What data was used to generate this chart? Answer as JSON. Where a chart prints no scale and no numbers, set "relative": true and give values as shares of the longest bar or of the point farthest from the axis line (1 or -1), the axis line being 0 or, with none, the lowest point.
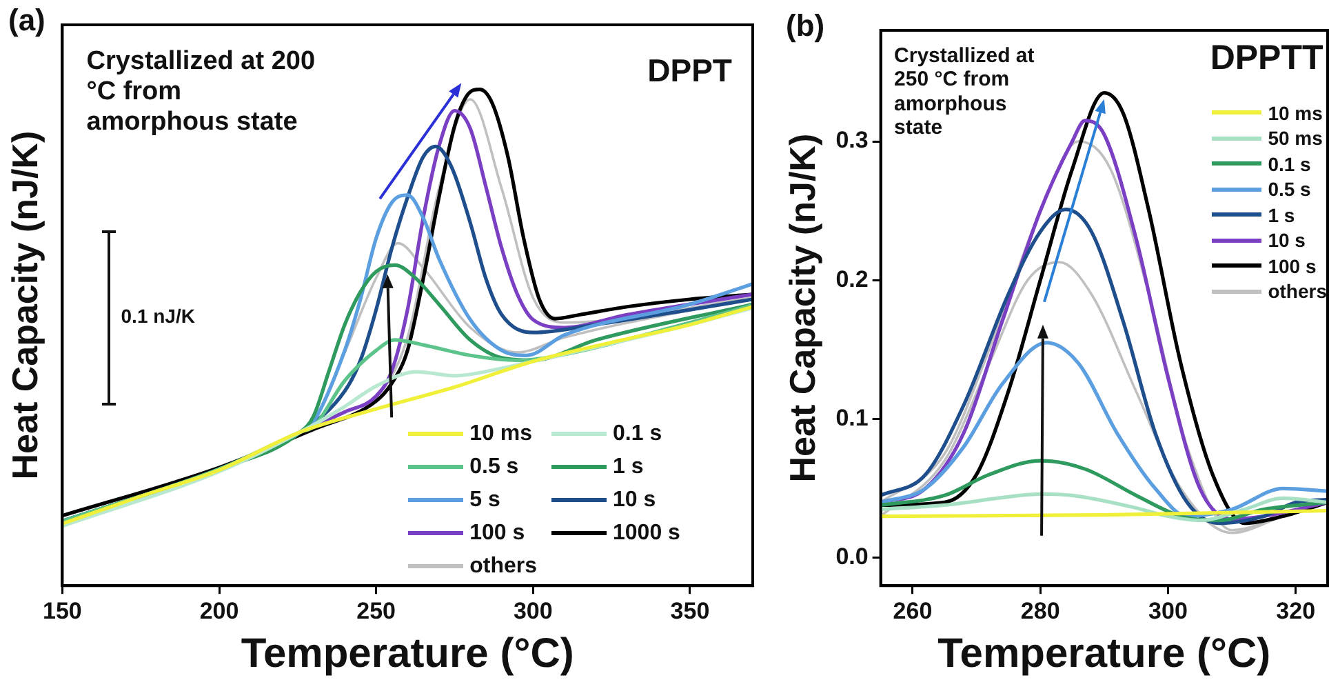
{
  "chart_data": [
    {
      "type": "line",
      "title": "(a)",
      "xlabel": "Temperature (°C)",
      "ylabel": "Heat Capacity (nJ/K)",
      "relative": true,
      "legend": "bottom right",
      "xlim": [
        150,
        370
      ],
      "xticks": [
        150,
        200,
        250,
        300,
        350
      ],
      "annotations": [
        "Crystallized at 200 °C from amorphous state",
        "DPPT",
        "0.1 nJ/K"
      ],
      "series": [
        {
          "name": "10 ms",
          "color": "#f0f03a",
          "x": [
            150,
            175,
            200,
            226,
            250,
            275,
            300,
            325,
            350,
            370
          ],
          "values": [
            0.125,
            0.18,
            0.233,
            0.31,
            0.356,
            0.4,
            0.452,
            0.49,
            0.526,
            0.562
          ]
        },
        {
          "name": "0.1 s",
          "color": "#b8e8d0",
          "x": [
            150,
            200,
            226,
            240,
            250,
            263,
            275,
            290,
            300,
            350,
            370
          ],
          "values": [
            0.12,
            0.23,
            0.31,
            0.361,
            0.402,
            0.431,
            0.423,
            0.438,
            0.452,
            0.526,
            0.56
          ]
        },
        {
          "name": "0.5 s",
          "color": "#5cc48a",
          "x": [
            150,
            200,
            226,
            230,
            240,
            250,
            256,
            265,
            280,
            295,
            305,
            350,
            370
          ],
          "values": [
            0.13,
            0.235,
            0.31,
            0.32,
            0.413,
            0.474,
            0.495,
            0.485,
            0.464,
            0.454,
            0.46,
            0.53,
            0.565
          ]
        },
        {
          "name": "1 s",
          "color": "#2e9a5e",
          "x": [
            150,
            200,
            226,
            230,
            235,
            240,
            245,
            250,
            256,
            262,
            270,
            280,
            290,
            300,
            320,
            370
          ],
          "values": [
            0.13,
            0.235,
            0.31,
            0.341,
            0.433,
            0.526,
            0.592,
            0.633,
            0.646,
            0.623,
            0.567,
            0.495,
            0.459,
            0.454,
            0.495,
            0.567
          ]
        },
        {
          "name": "5 s",
          "color": "#5b9fe0",
          "x": [
            226,
            230,
            240,
            245,
            250,
            255,
            260,
            265,
            270,
            280,
            290,
            298,
            310,
            350,
            370
          ],
          "values": [
            0.31,
            0.33,
            0.474,
            0.577,
            0.7,
            0.772,
            0.787,
            0.741,
            0.659,
            0.536,
            0.474,
            0.464,
            0.505,
            0.567,
            0.608
          ]
        },
        {
          "name": "10 s",
          "color": "#1f4e8c",
          "x": [
            150,
            200,
            226,
            240,
            245,
            250,
            255,
            260,
            265,
            269,
            274,
            280,
            285,
            290,
            300,
            320,
            350,
            370
          ],
          "values": [
            0.13,
            0.235,
            0.31,
            0.392,
            0.454,
            0.556,
            0.68,
            0.782,
            0.864,
            0.885,
            0.844,
            0.731,
            0.618,
            0.546,
            0.51,
            0.526,
            0.556,
            0.577
          ]
        },
        {
          "name": "100 s",
          "color": "#7b3fc4",
          "x": [
            150,
            200,
            226,
            240,
            250,
            255,
            260,
            265,
            270,
            275,
            280,
            285,
            290,
            295,
            300,
            310,
            330,
            350,
            370
          ],
          "values": [
            0.13,
            0.235,
            0.31,
            0.35,
            0.382,
            0.433,
            0.556,
            0.741,
            0.885,
            0.957,
            0.921,
            0.803,
            0.68,
            0.587,
            0.536,
            0.52,
            0.546,
            0.567,
            0.587
          ]
        },
        {
          "name": "1000 s",
          "color": "#000000",
          "x": [
            150,
            200,
            230,
            250,
            255,
            260,
            265,
            270,
            275,
            279,
            283,
            287,
            292,
            297,
            302,
            307,
            315,
            330,
            350,
            370
          ],
          "values": [
            0.141,
            0.238,
            0.315,
            0.372,
            0.408,
            0.474,
            0.618,
            0.782,
            0.926,
            0.988,
            1,
            0.972,
            0.864,
            0.7,
            0.577,
            0.538,
            0.546,
            0.562,
            0.577,
            0.587
          ]
        },
        {
          "name": "others",
          "color": "#c0c0c0",
          "x": [
            150,
            200,
            226,
            230,
            240,
            250,
            257,
            265,
            280,
            295,
            310,
            370
          ],
          "values": [
            0.13,
            0.235,
            0.31,
            0.33,
            0.47,
            0.62,
            0.69,
            0.64,
            0.52,
            0.47,
            0.5,
            0.58
          ]
        },
        {
          "color": "#c0c0c0",
          "x": [
            150,
            200,
            226,
            250,
            260,
            270,
            280,
            290,
            300,
            310,
            370
          ],
          "values": [
            0.13,
            0.235,
            0.31,
            0.38,
            0.5,
            0.8,
            0.98,
            0.8,
            0.58,
            0.53,
            0.58
          ]
        }
      ]
    },
    {
      "type": "line",
      "title": "(b)",
      "xlabel": "Temperature (°C)",
      "ylabel": "Heat Capacity (nJ/K)",
      "legend": "right",
      "xlim": [
        255,
        325
      ],
      "xticks": [
        260,
        280,
        300,
        320
      ],
      "ylim": [
        -0.02,
        0.38
      ],
      "yticks": [
        {
          "value": 0,
          "label": "0.0"
        },
        0.1,
        0.2,
        0.3
      ],
      "annotations": [
        "Crystallized at 250 °C from amorphous state",
        "DPPTT"
      ],
      "series": [
        {
          "name": "10 ms",
          "color": "#f0f03a",
          "x": [
            255,
            290,
            325
          ],
          "values": [
            0.03,
            0.031,
            0.034
          ]
        },
        {
          "name": "50 ms",
          "color": "#a8e0c4",
          "x": [
            255,
            265,
            275,
            280,
            285,
            295,
            300,
            305,
            312,
            318,
            325
          ],
          "values": [
            0.035,
            0.038,
            0.044,
            0.046,
            0.045,
            0.036,
            0.03,
            0.027,
            0.035,
            0.043,
            0.04
          ]
        },
        {
          "name": "0.1 s",
          "color": "#2e9a5e",
          "x": [
            255,
            265,
            272,
            280,
            287,
            295,
            302,
            308,
            315,
            325
          ],
          "values": [
            0.038,
            0.045,
            0.06,
            0.07,
            0.064,
            0.045,
            0.03,
            0.027,
            0.035,
            0.04
          ]
        },
        {
          "name": "0.5 s",
          "color": "#5b9fe0",
          "x": [
            255,
            262,
            268,
            274,
            281,
            286,
            292,
            298,
            303,
            310,
            318,
            325
          ],
          "values": [
            0.04,
            0.05,
            0.08,
            0.125,
            0.155,
            0.14,
            0.09,
            0.05,
            0.03,
            0.035,
            0.05,
            0.048
          ]
        },
        {
          "name": "1 s",
          "color": "#1f4e8c",
          "x": [
            255,
            262,
            268,
            275,
            280,
            284,
            288,
            293,
            298,
            303,
            308,
            315,
            320,
            325
          ],
          "values": [
            0.045,
            0.06,
            0.11,
            0.19,
            0.235,
            0.251,
            0.235,
            0.17,
            0.09,
            0.04,
            0.025,
            0.03,
            0.04,
            0.042
          ]
        },
        {
          "name": "10 s",
          "color": "#7b3fc4",
          "x": [
            255,
            262,
            268,
            274,
            280,
            285,
            287,
            290,
            295,
            300,
            305,
            310,
            315,
            325
          ],
          "values": [
            0.04,
            0.05,
            0.09,
            0.17,
            0.25,
            0.3,
            0.315,
            0.305,
            0.23,
            0.13,
            0.05,
            0.028,
            0.03,
            0.04
          ]
        },
        {
          "name": "100 s",
          "color": "#000000",
          "x": [
            255,
            265,
            270,
            275,
            280,
            285,
            290,
            293,
            297,
            302,
            307,
            312,
            318,
            325
          ],
          "values": [
            0.038,
            0.04,
            0.06,
            0.12,
            0.2,
            0.28,
            0.335,
            0.32,
            0.25,
            0.14,
            0.06,
            0.025,
            0.03,
            0.04
          ]
        },
        {
          "name": "others",
          "color": "#c0c0c0",
          "x": [
            255,
            265,
            272,
            278,
            283,
            288,
            295,
            302,
            310,
            318,
            325
          ],
          "values": [
            0.03,
            0.07,
            0.14,
            0.2,
            0.213,
            0.19,
            0.12,
            0.05,
            0.018,
            0.03,
            0.04
          ]
        },
        {
          "color": "#c0c0c0",
          "x": [
            255,
            265,
            272,
            280,
            286,
            291,
            297,
            303,
            310,
            318,
            325
          ],
          "values": [
            0.04,
            0.075,
            0.15,
            0.25,
            0.3,
            0.28,
            0.19,
            0.08,
            0.02,
            0.03,
            0.04
          ]
        }
      ]
    }
  ]
}
